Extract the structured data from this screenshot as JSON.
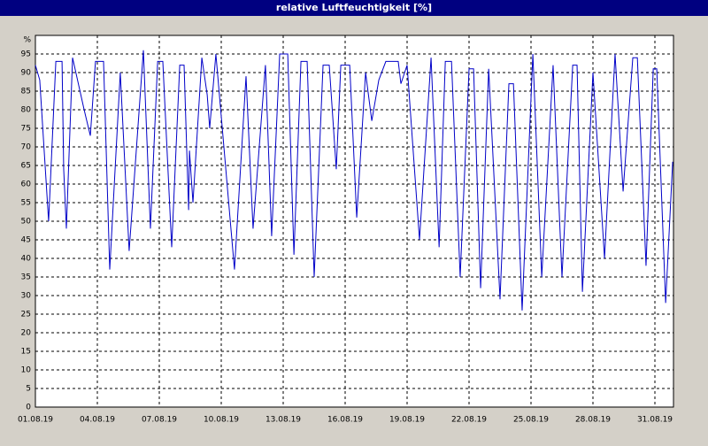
{
  "chart_data": {
    "type": "line",
    "title": "relative Luftfeuchtigkeit [%]",
    "y_axis_label": "%",
    "x": [
      0,
      0.21,
      0.64,
      0.99,
      1.29,
      1.37,
      1.5,
      1.8,
      2.36,
      2.66,
      2.91,
      3.3,
      3.6,
      4.11,
      4.54,
      5.23,
      5.57,
      5.92,
      6.17,
      6.6,
      6.99,
      7.2,
      7.42,
      7.46,
      7.63,
      8.06,
      8.32,
      8.44,
      8.74,
      9.64,
      10.2,
      10.54,
      11.14,
      11.44,
      11.83,
      12.22,
      12.52,
      12.86,
      13.16,
      13.5,
      13.93,
      14.23,
      14.57,
      14.79,
      15.22,
      15.56,
      15.99,
      16.29,
      16.63,
      16.97,
      17.57,
      17.7,
      18,
      18.6,
      19.16,
      19.55,
      19.85,
      20.15,
      20.57,
      21,
      21.22,
      21.56,
      21.95,
      22.5,
      22.93,
      23.15,
      23.57,
      24.09,
      24.52,
      25.07,
      25.5,
      26.02,
      26.23,
      26.49,
      27,
      27.56,
      28.07,
      28.46,
      28.93,
      29.15,
      29.57,
      29.92,
      30.09,
      30.52,
      30.86
    ],
    "values": [
      92,
      88,
      50,
      93,
      93,
      64,
      48,
      94,
      80,
      73,
      93,
      93,
      37,
      90,
      42,
      96,
      48,
      93,
      93,
      43,
      92,
      92,
      53,
      69,
      55,
      94,
      84,
      75,
      95,
      37,
      89,
      48,
      92,
      46,
      95,
      95,
      41,
      93,
      93,
      35,
      92,
      92,
      64,
      92,
      92,
      51,
      90,
      77,
      88,
      93,
      93,
      87,
      92,
      45,
      94,
      43,
      93,
      93,
      35,
      91,
      91,
      32,
      91,
      29,
      87,
      87,
      26,
      95,
      35,
      92,
      35,
      92,
      92,
      31,
      90,
      40,
      95,
      58,
      94,
      94,
      38,
      91,
      91,
      28,
      66
    ],
    "color": "#0000c8",
    "xlim": [
      0,
      30.9
    ],
    "xticks": [
      {
        "value": 0,
        "label": "01.08.19"
      },
      {
        "value": 3,
        "label": "04.08.19"
      },
      {
        "value": 6,
        "label": "07.08.19"
      },
      {
        "value": 9,
        "label": "10.08.19"
      },
      {
        "value": 12,
        "label": "13.08.19"
      },
      {
        "value": 15,
        "label": "16.08.19"
      },
      {
        "value": 18,
        "label": "19.08.19"
      },
      {
        "value": 21,
        "label": "22.08.19"
      },
      {
        "value": 24,
        "label": "25.08.19"
      },
      {
        "value": 27,
        "label": "28.08.19"
      },
      {
        "value": 30,
        "label": "31.08.19"
      }
    ],
    "ylim": [
      0,
      100
    ],
    "yticks": [
      0,
      5,
      10,
      15,
      20,
      25,
      30,
      35,
      40,
      45,
      50,
      55,
      60,
      65,
      70,
      75,
      80,
      85,
      90,
      95
    ],
    "grid": true
  }
}
